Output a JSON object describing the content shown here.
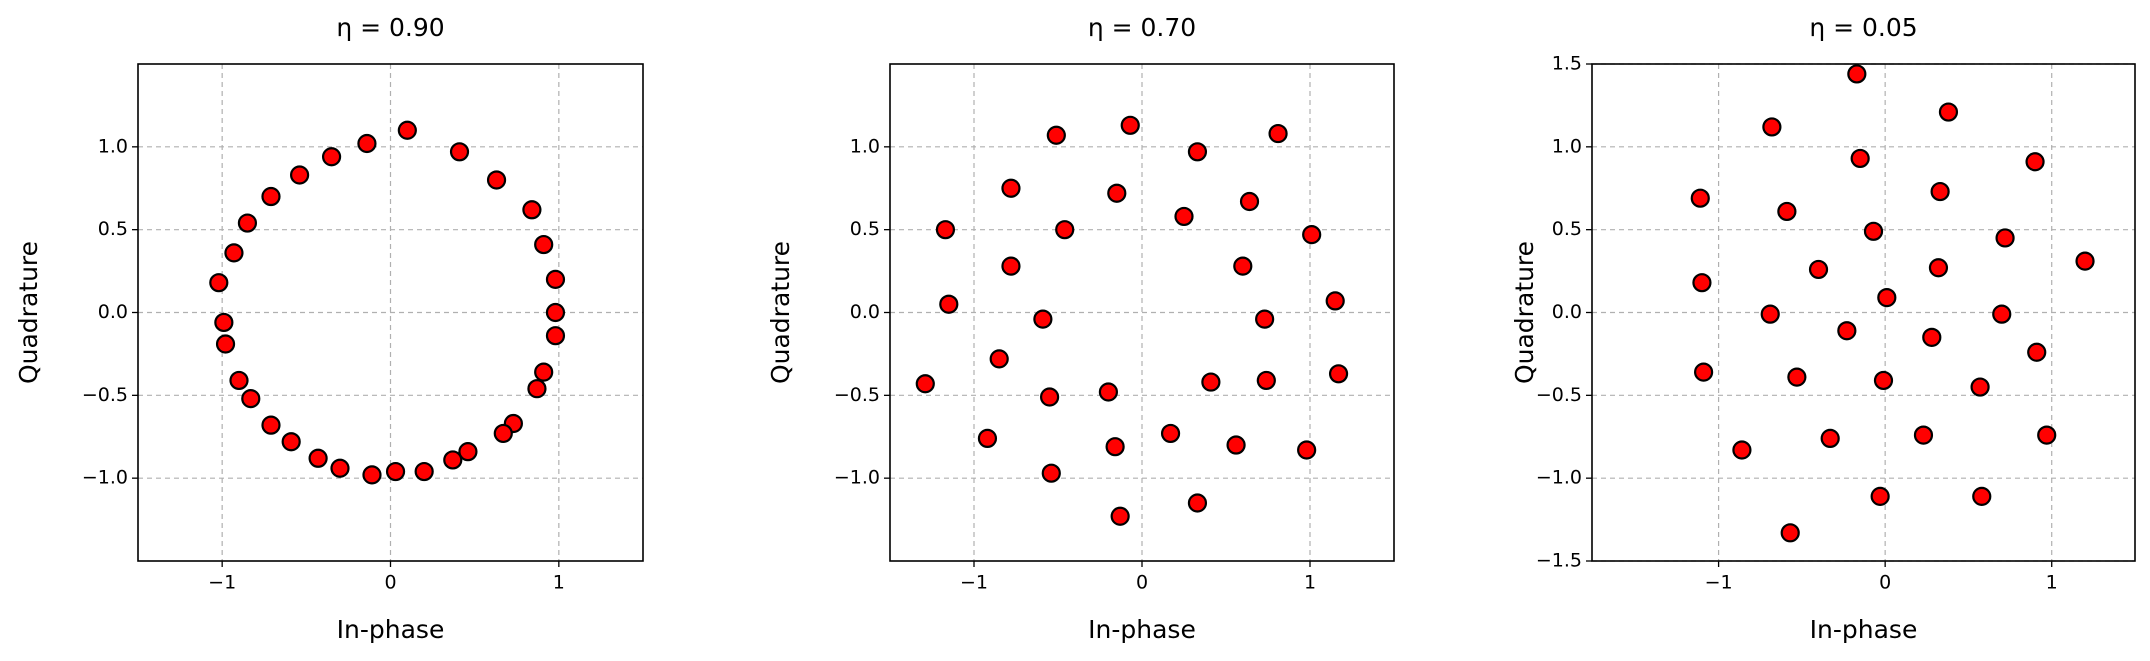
{
  "chart_data": [
    {
      "type": "scatter",
      "title": "η = 0.90",
      "x_label": "In-phase",
      "y_label": "Quadrature",
      "color": "#ff0000",
      "edge_color": "#000000",
      "grid": true,
      "xlim": [
        -1.5,
        1.5
      ],
      "ylim": [
        -1.5,
        1.5
      ],
      "xticks": [
        {
          "value": -1,
          "label": "−1"
        },
        0,
        1
      ],
      "yticks": [
        {
          "value": -1,
          "label": "−1.0"
        },
        {
          "value": -0.5,
          "label": "−0.5"
        },
        {
          "value": 0,
          "label": "0.0"
        },
        {
          "value": 0.5,
          "label": "0.5"
        },
        {
          "value": 1,
          "label": "1.0"
        }
      ],
      "x": [
        0.1,
        0.41,
        0.63,
        0.84,
        0.91,
        0.98,
        0.98,
        0.98,
        0.91,
        0.87,
        0.73,
        0.67,
        0.46,
        0.37,
        0.2,
        0.03,
        -0.11,
        -0.3,
        -0.43,
        -0.59,
        -0.71,
        -0.83,
        -0.9,
        -0.98,
        -0.99,
        -1.02,
        -0.93,
        -0.85,
        -0.71,
        -0.54,
        -0.35,
        -0.14
      ],
      "values": [
        1.1,
        0.97,
        0.8,
        0.62,
        0.41,
        0.2,
        0.0,
        -0.14,
        -0.36,
        -0.46,
        -0.67,
        -0.73,
        -0.84,
        -0.89,
        -0.96,
        -0.96,
        -0.98,
        -0.94,
        -0.88,
        -0.78,
        -0.68,
        -0.52,
        -0.41,
        -0.19,
        -0.06,
        0.18,
        0.36,
        0.54,
        0.7,
        0.83,
        0.94,
        1.02
      ]
    },
    {
      "type": "scatter",
      "title": "η = 0.70",
      "x_label": "In-phase",
      "y_label": "Quadrature",
      "color": "#ff0000",
      "edge_color": "#000000",
      "grid": true,
      "xlim": [
        -1.5,
        1.5
      ],
      "ylim": [
        -1.5,
        1.5
      ],
      "xticks": [
        {
          "value": -1,
          "label": "−1"
        },
        0,
        1
      ],
      "yticks": [
        {
          "value": -1,
          "label": "−1.0"
        },
        {
          "value": -0.5,
          "label": "−0.5"
        },
        {
          "value": 0,
          "label": "0.0"
        },
        {
          "value": 0.5,
          "label": "0.5"
        },
        {
          "value": 1,
          "label": "1.0"
        }
      ],
      "x": [
        -0.07,
        -0.51,
        0.81,
        0.33,
        -0.78,
        -0.15,
        0.25,
        0.64,
        -1.17,
        -0.46,
        1.01,
        -0.78,
        0.6,
        -1.15,
        1.15,
        -0.59,
        0.73,
        -0.85,
        -1.29,
        -0.55,
        -0.2,
        0.41,
        0.74,
        1.17,
        -0.92,
        -0.16,
        0.17,
        0.56,
        0.98,
        -0.54,
        0.33,
        -0.13
      ],
      "values": [
        1.13,
        1.07,
        1.08,
        0.97,
        0.75,
        0.72,
        0.58,
        0.67,
        0.5,
        0.5,
        0.47,
        0.28,
        0.28,
        0.05,
        0.07,
        -0.04,
        -0.04,
        -0.28,
        -0.43,
        -0.51,
        -0.48,
        -0.42,
        -0.41,
        -0.37,
        -0.76,
        -0.81,
        -0.73,
        -0.8,
        -0.83,
        -0.97,
        -1.15,
        -1.23
      ]
    },
    {
      "type": "scatter",
      "title": "η = 0.05",
      "x_label": "In-phase",
      "y_label": "Quadrature",
      "color": "#ff0000",
      "edge_color": "#000000",
      "grid": true,
      "xlim": [
        -1.76,
        1.5
      ],
      "ylim": [
        -1.5,
        1.5
      ],
      "xticks": [
        {
          "value": -1,
          "label": "−1"
        },
        0,
        1
      ],
      "yticks": [
        {
          "value": -1.5,
          "label": "−1.5"
        },
        {
          "value": -1,
          "label": "−1.0"
        },
        {
          "value": -0.5,
          "label": "−0.5"
        },
        {
          "value": 0,
          "label": "0.0"
        },
        {
          "value": 0.5,
          "label": "0.5"
        },
        {
          "value": 1,
          "label": "1.0"
        },
        {
          "value": 1.5,
          "label": "1.5"
        }
      ],
      "x": [
        -0.17,
        0.38,
        -0.68,
        0.9,
        -0.15,
        0.33,
        -1.11,
        -0.59,
        -0.07,
        0.72,
        1.2,
        -0.4,
        0.32,
        -1.1,
        0.01,
        -0.69,
        0.7,
        -0.23,
        0.28,
        0.91,
        -1.09,
        -0.53,
        -0.01,
        0.57,
        0.23,
        -0.33,
        0.97,
        -0.86,
        -0.03,
        0.58,
        -0.57
      ],
      "values": [
        1.44,
        1.21,
        1.12,
        0.91,
        0.93,
        0.73,
        0.69,
        0.61,
        0.49,
        0.45,
        0.31,
        0.26,
        0.27,
        0.18,
        0.09,
        -0.01,
        -0.01,
        -0.11,
        -0.15,
        -0.24,
        -0.36,
        -0.39,
        -0.41,
        -0.45,
        -0.74,
        -0.76,
        -0.74,
        -0.83,
        -1.11,
        -1.11,
        -1.33
      ]
    }
  ]
}
